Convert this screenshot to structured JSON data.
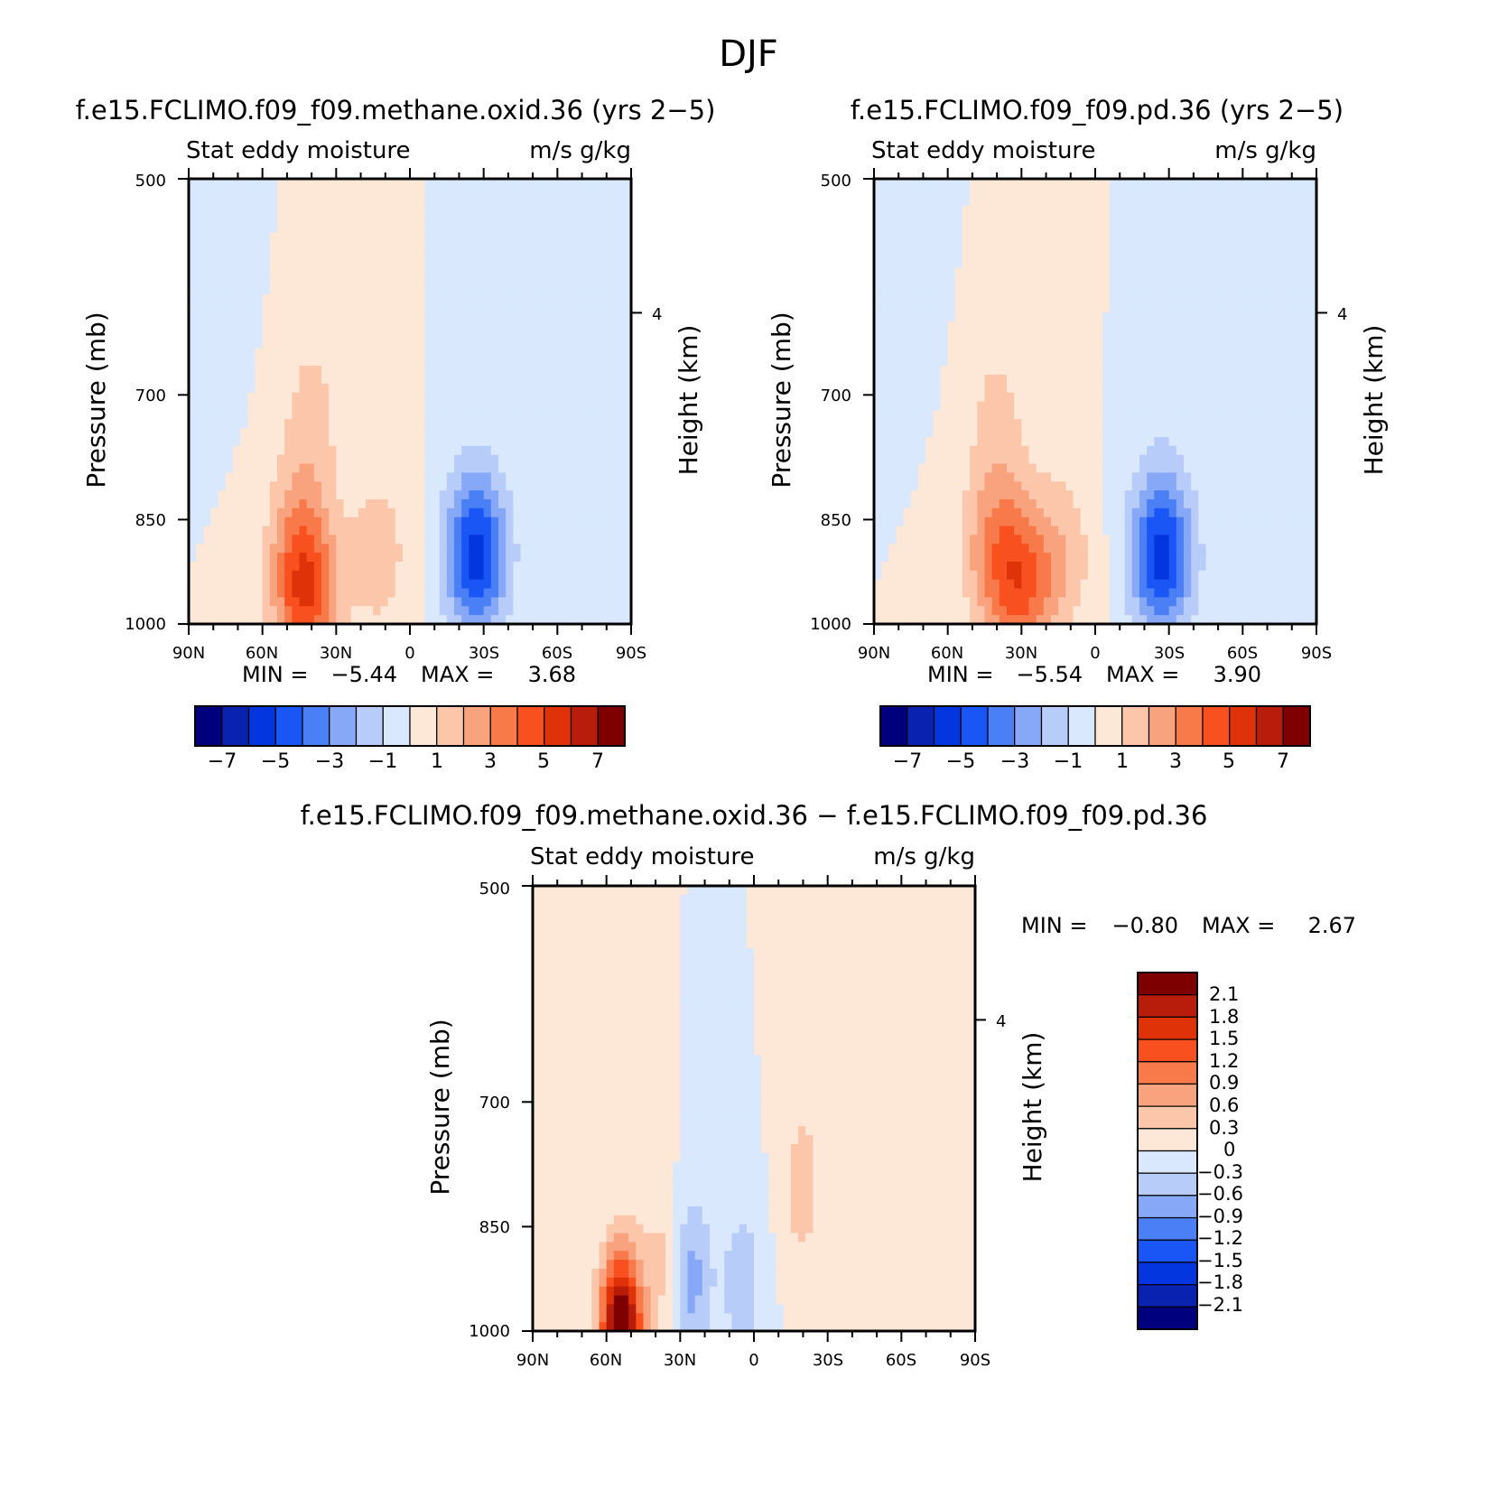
{
  "title": "DJF",
  "colors": {
    "main_cmap": [
      "#00007f",
      "#0a22b0",
      "#0436e0",
      "#1a56f5",
      "#4a7ff5",
      "#86a8f7",
      "#b8ccf9",
      "#d9e8fc",
      "#fde7d7",
      "#fcc6ab",
      "#f9a37e",
      "#f87a4a",
      "#f8501e",
      "#e03208",
      "#b81c0a",
      "#7f0000"
    ],
    "diff_cmap": [
      "#00007f",
      "#0a22b0",
      "#0436e0",
      "#1a56f5",
      "#4a7ff5",
      "#86a8f7",
      "#b8ccf9",
      "#d9e8fc",
      "#fde7d7",
      "#fcc6ab",
      "#f9a37e",
      "#f87a4a",
      "#f8501e",
      "#e03208",
      "#b81c0a",
      "#7f0000"
    ]
  },
  "chart_data": [
    {
      "type": "heatmap",
      "panel": "left",
      "title": "f.e15.FCLIMO.f09_f09.methane.oxid.36 (yrs 2−5)",
      "subtitle_left": "Stat eddy moisture",
      "subtitle_right": "m/s g/kg",
      "xlabel": "",
      "ylabel": "Pressure (mb)",
      "ylabel_right": "Height (km)",
      "x_ticks": [
        "90N",
        "60N",
        "30N",
        "0",
        "30S",
        "60S",
        "90S"
      ],
      "y_ticks": [
        "500",
        "700",
        "850",
        "1000"
      ],
      "y_right_ticks": [
        "4"
      ],
      "min_label": "MIN =",
      "min_value": "−5.44",
      "max_label": "MAX =",
      "max_value": "3.68",
      "colorbar_labels": [
        "−7",
        "−5",
        "−3",
        "−1",
        "1",
        "3",
        "5",
        "7"
      ],
      "features": [
        {
          "lat": -27,
          "p": 900,
          "value": -5.44
        },
        {
          "lat": 42,
          "p": 970,
          "value": 3.68
        },
        {
          "lat": 45,
          "p": 890,
          "value": 2.5
        },
        {
          "lat": 13,
          "p": 900,
          "value": 1.6
        },
        {
          "lat": 40,
          "p": 720,
          "value": 1.2
        },
        {
          "lat": 78,
          "p": 560,
          "value": -0.6
        },
        {
          "lat": -55,
          "p": 600,
          "value": -0.5
        }
      ]
    },
    {
      "type": "heatmap",
      "panel": "right",
      "title": "f.e15.FCLIMO.f09_f09.pd.36 (yrs 2−5)",
      "subtitle_left": "Stat eddy moisture",
      "subtitle_right": "m/s g/kg",
      "xlabel": "",
      "ylabel": "Pressure (mb)",
      "ylabel_right": "Height (km)",
      "x_ticks": [
        "90N",
        "60N",
        "30N",
        "0",
        "30S",
        "60S",
        "90S"
      ],
      "y_ticks": [
        "500",
        "700",
        "850",
        "1000"
      ],
      "y_right_ticks": [
        "4"
      ],
      "min_label": "MIN =",
      "min_value": "−5.54",
      "max_label": "MAX =",
      "max_value": "3.90",
      "colorbar_labels": [
        "−7",
        "−5",
        "−3",
        "−1",
        "1",
        "3",
        "5",
        "7"
      ],
      "features": [
        {
          "lat": -27,
          "p": 900,
          "value": -5.54
        },
        {
          "lat": 30,
          "p": 940,
          "value": 3.9
        },
        {
          "lat": 42,
          "p": 890,
          "value": 2.4
        },
        {
          "lat": 13,
          "p": 900,
          "value": 1.6
        },
        {
          "lat": 40,
          "p": 720,
          "value": 1.1
        },
        {
          "lat": 75,
          "p": 560,
          "value": -0.5
        }
      ]
    },
    {
      "type": "heatmap",
      "panel": "difference",
      "title": "f.e15.FCLIMO.f09_f09.methane.oxid.36 − f.e15.FCLIMO.f09_f09.pd.36",
      "subtitle_left": "Stat eddy moisture",
      "subtitle_right": "m/s g/kg",
      "xlabel": "",
      "ylabel": "Pressure (mb)",
      "ylabel_right": "Height (km)",
      "x_ticks": [
        "90N",
        "60N",
        "30N",
        "0",
        "30S",
        "60S",
        "90S"
      ],
      "y_ticks": [
        "500",
        "700",
        "850",
        "1000"
      ],
      "y_right_ticks": [
        "4"
      ],
      "min_label": "MIN =",
      "min_value": "−0.80",
      "max_label": "MAX =",
      "max_value": "2.67",
      "colorbar_labels": [
        "2.1",
        "1.8",
        "1.5",
        "1.2",
        "0.9",
        "0.6",
        "0.3",
        "0",
        "−0.3",
        "−0.6",
        "−0.9",
        "−1.2",
        "−1.5",
        "−1.8",
        "−2.1"
      ],
      "features": [
        {
          "lat": 54,
          "p": 1000,
          "value": 2.67
        },
        {
          "lat": 26,
          "p": 920,
          "value": -0.8
        },
        {
          "lat": 36,
          "p": 900,
          "value": 0.45
        },
        {
          "lat": -20,
          "p": 800,
          "value": 0.45
        },
        {
          "lat": 5,
          "p": 930,
          "value": -0.5
        }
      ]
    }
  ]
}
